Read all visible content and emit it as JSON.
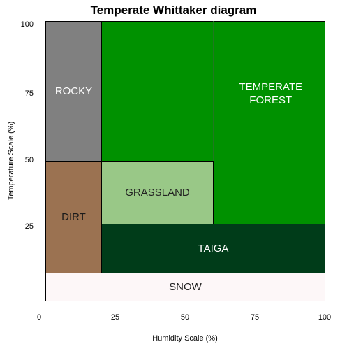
{
  "title": "Temperate Whittaker diagram",
  "x_axis": {
    "label": "Humidity Scale (%)",
    "ticks": [
      "0",
      "25",
      "50",
      "75",
      "100"
    ]
  },
  "y_axis": {
    "label": "Temperature Scale (%)",
    "ticks": [
      "100",
      "75",
      "50",
      "25"
    ]
  },
  "regions": [
    {
      "name": "rocky",
      "label": "ROCKY",
      "color": "#808080",
      "text_color": "#ffffff"
    },
    {
      "name": "temperate-forest",
      "label": "TEMPERATE\nFOREST",
      "color": "#009100",
      "text_color": "#ffffff"
    },
    {
      "name": "grassland",
      "label": "GRASSLAND",
      "color": "#99c887",
      "text_color": "#222222"
    },
    {
      "name": "dirt",
      "label": "DIRT",
      "color": "#9b7251",
      "text_color": "#1a1a1a"
    },
    {
      "name": "taiga",
      "label": "TAIGA",
      "color": "#003c19",
      "text_color": "#ffffff"
    },
    {
      "name": "snow",
      "label": "SNOW",
      "color": "#fdf7f8",
      "text_color": "#222222"
    }
  ]
}
